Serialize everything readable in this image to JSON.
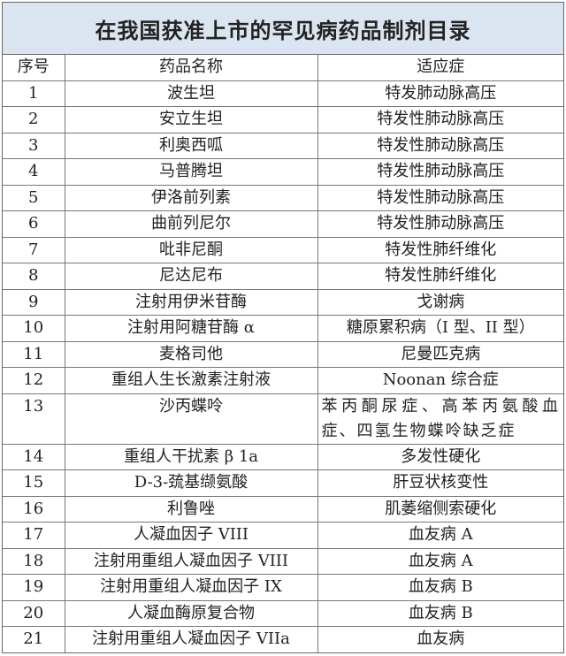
{
  "title": "在我国获准上市的罕见病药品制剂目录",
  "headers": [
    "序号",
    "药品名称",
    "适应症"
  ],
  "rows": [
    [
      "1",
      "波生坦",
      "特发肺动脉高压"
    ],
    [
      "2",
      "安立生坦",
      "特发性肺动脉高压"
    ],
    [
      "3",
      "利奥西呱",
      "特发性肺动脉高压"
    ],
    [
      "4",
      "马普腾坦",
      "特发性肺动脉高压"
    ],
    [
      "5",
      "伊洛前列素",
      "特发性肺动脉高压"
    ],
    [
      "6",
      "曲前列尼尔",
      "特发性肺动脉高压"
    ],
    [
      "7",
      "吡非尼酮",
      "特发性肺纤维化"
    ],
    [
      "8",
      "尼达尼布",
      "特发性肺纤维化"
    ],
    [
      "9",
      "注射用伊米苷酶",
      "戈谢病"
    ],
    [
      "10",
      "注射用阿糖苷酶 α",
      "糖原累积病（I 型、II 型）"
    ],
    [
      "11",
      "麦格司他",
      "尼曼匹克病"
    ],
    [
      "12",
      "重组人生长激素注射液",
      "Noonan 综合症"
    ],
    [
      "13",
      "沙丙蝶呤",
      "苯丙酮尿症、高苯丙氨酸血症、四氢生物蝶呤缺乏症"
    ],
    [
      "14",
      "重组人干扰素 β 1a",
      "多发性硬化"
    ],
    [
      "15",
      "D-3-巯基缬氨酸",
      "肝豆状核变性"
    ],
    [
      "16",
      "利鲁唑",
      "肌萎缩侧索硬化"
    ],
    [
      "17",
      "人凝血因子 VIII",
      "血友病 A"
    ],
    [
      "18",
      "注射用重组人凝血因子 VIII",
      "血友病 A"
    ],
    [
      "19",
      "注射用重组人凝血因子 IX",
      "血友病 B"
    ],
    [
      "20",
      "人凝血酶原复合物",
      "血友病 B"
    ],
    [
      "21",
      "注射用重组人凝血因子 VIIa",
      "血友病"
    ]
  ]
}
